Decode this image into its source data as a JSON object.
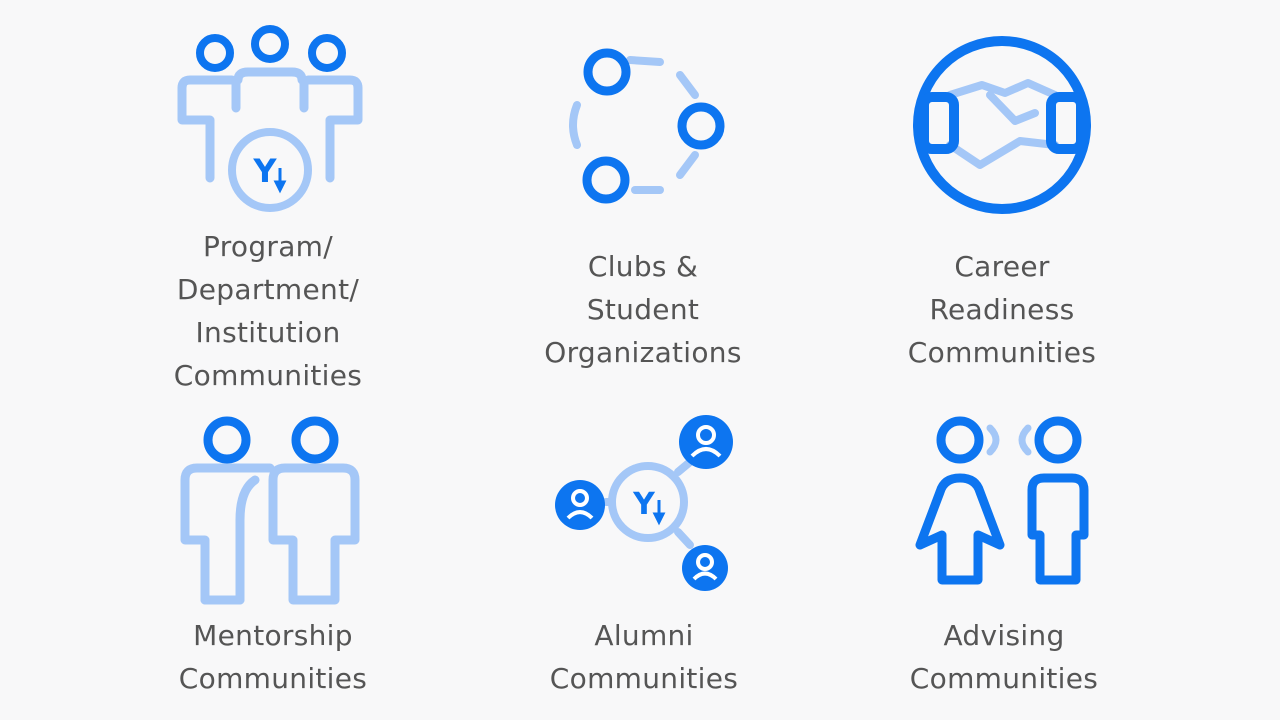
{
  "colors": {
    "background": "#f8f8f9",
    "primary": "#0d75f0",
    "light": "#a4c7f7",
    "text": "#555555"
  },
  "items": [
    {
      "icon": "group-with-logo-icon",
      "label_lines": [
        "Program/",
        "Department/",
        "Institution",
        "Communities"
      ],
      "logo_letter": "Y"
    },
    {
      "icon": "clubs-cycle-icon",
      "label_lines": [
        "Clubs &",
        "Student",
        "Organizations"
      ]
    },
    {
      "icon": "handshake-icon",
      "label_lines": [
        "Career",
        "Readiness",
        "Communities"
      ]
    },
    {
      "icon": "mentorship-pair-icon",
      "label_lines": [
        "Mentorship",
        "Communities"
      ]
    },
    {
      "icon": "alumni-network-icon",
      "label_lines": [
        "Alumni",
        "Communities"
      ],
      "logo_letter": "Y"
    },
    {
      "icon": "advising-conversation-icon",
      "label_lines": [
        "Advising",
        "Communities"
      ]
    }
  ]
}
